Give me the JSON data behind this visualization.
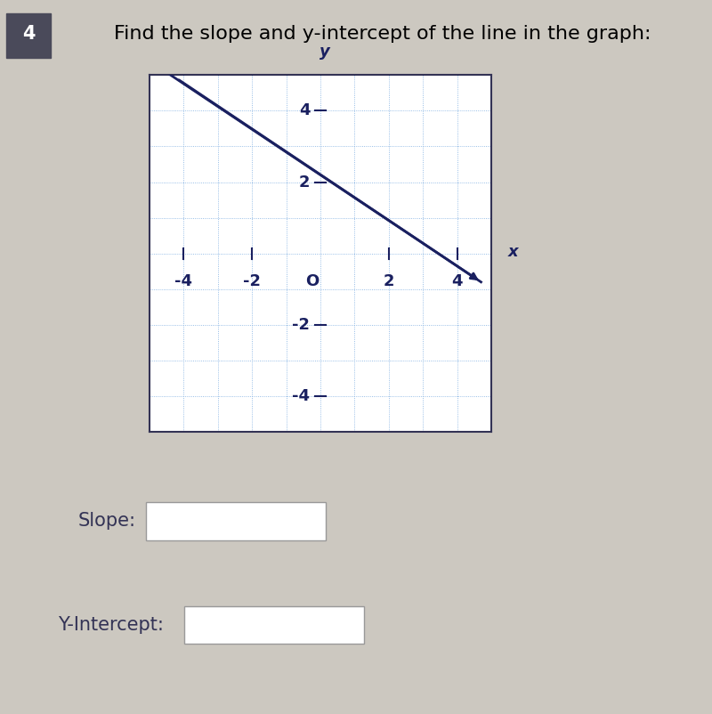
{
  "title": "Find the slope and y-intercept of the line in the graph:",
  "question_number": "4",
  "bg_color": "#ccc8c0",
  "graph_bg_color": "#ffffff",
  "grid_color": "#7aabe0",
  "axis_color": "#1a2060",
  "line_color": "#1a2060",
  "line_x1": -4.7,
  "line_y1": 5.2,
  "line_x2": 4.7,
  "line_y2": -0.8,
  "xmin": -5,
  "xmax": 5,
  "ymin": -5,
  "ymax": 5,
  "xticks": [
    -4,
    -2,
    2,
    4
  ],
  "yticks": [
    -4,
    -2,
    2,
    4
  ],
  "slope_label": "Slope:",
  "yintercept_label": "Y-Intercept:",
  "box_face_color": "#ffffff",
  "box_edge_color": "#999999",
  "title_fontsize": 16,
  "label_fontsize": 15,
  "tick_fontsize": 13,
  "num_box_color": "#4a4a5a"
}
